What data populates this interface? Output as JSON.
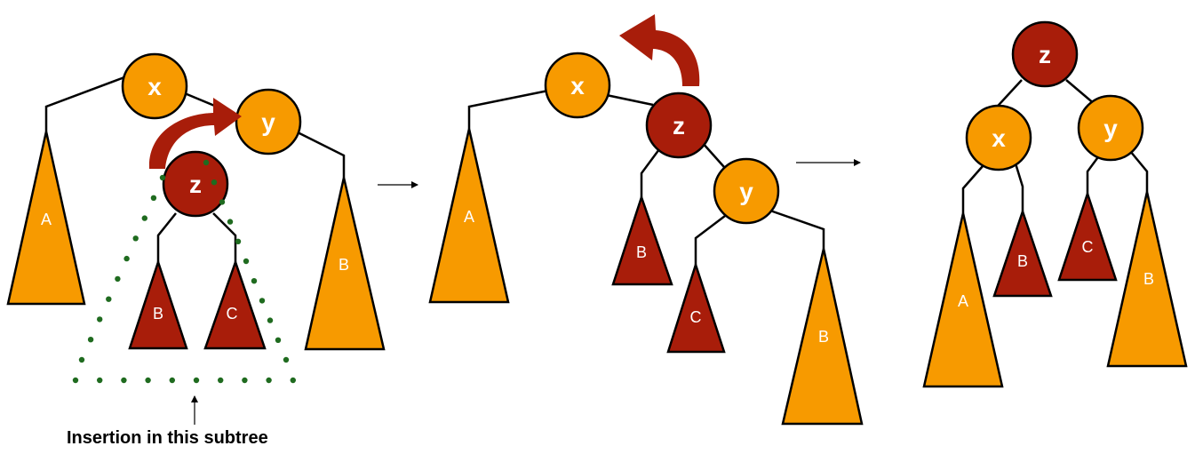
{
  "colors": {
    "orange": "#f79a00",
    "dark_red": "#a81d0a",
    "rotation_arrow": "#a81d0a",
    "dotted": "#1f6b1f"
  },
  "caption": "Insertion in this subtree",
  "stage1": {
    "nodes": {
      "x": "x",
      "y": "y",
      "z": "z"
    },
    "subtrees": {
      "A": "A",
      "B1": "B",
      "C": "C",
      "B2": "B"
    }
  },
  "stage2": {
    "nodes": {
      "x": "x",
      "z": "z",
      "y": "y"
    },
    "subtrees": {
      "A": "A",
      "B1": "B",
      "C": "C",
      "B2": "B"
    }
  },
  "stage3": {
    "nodes": {
      "z": "z",
      "x": "x",
      "y": "y"
    },
    "subtrees": {
      "A": "A",
      "B1": "B",
      "C": "C",
      "B2": "B"
    }
  }
}
